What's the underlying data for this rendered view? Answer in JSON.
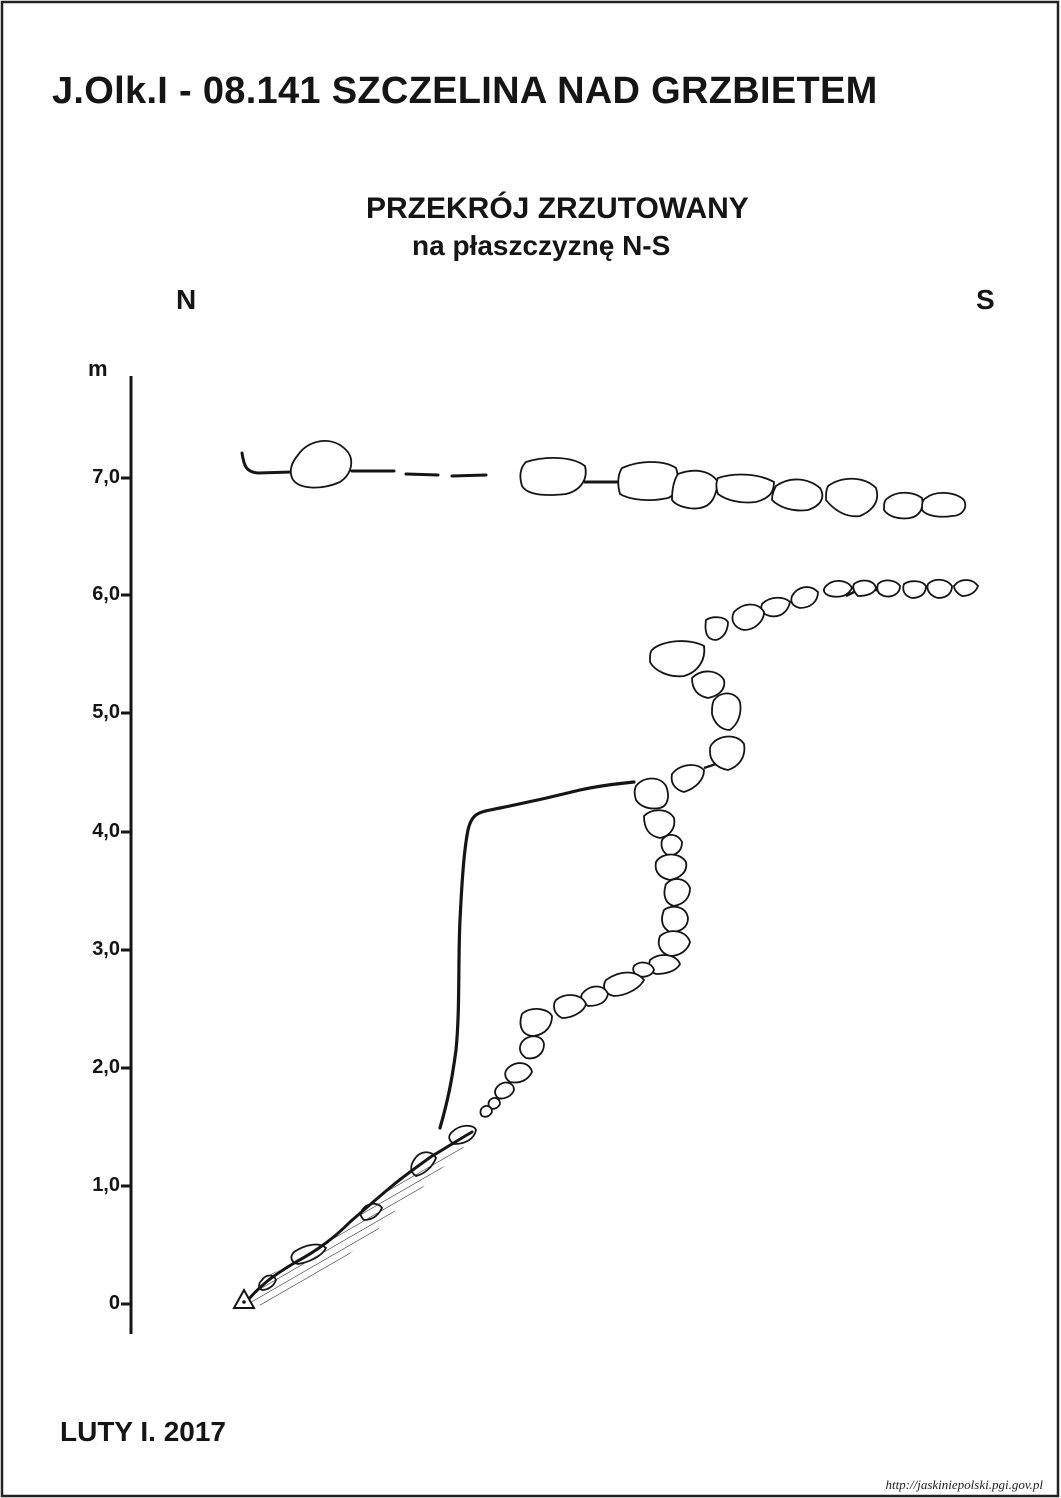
{
  "title": "J.Olk.I - 08.141  SZCZELINA NAD GRZBIETEM",
  "subtitle": {
    "line1": "PRZEKRÓJ ZRZUTOWANY",
    "line2": "na płaszczyznę N-S"
  },
  "directions": {
    "left": "N",
    "right": "S"
  },
  "scale": {
    "unit": "m",
    "ticks": [
      "0",
      "1,0",
      "2,0",
      "3,0",
      "4,0",
      "5,0",
      "6,0",
      "7,0"
    ]
  },
  "footer": "LUTY I. 2017",
  "source_url": "http://jaskiniepolski.pgi.gov.pl",
  "symbols": {
    "datum_marker": "triangle-with-dot-icon"
  },
  "colors": {
    "ink": "#151515",
    "background": "#ffffff",
    "frame": "#222222"
  }
}
